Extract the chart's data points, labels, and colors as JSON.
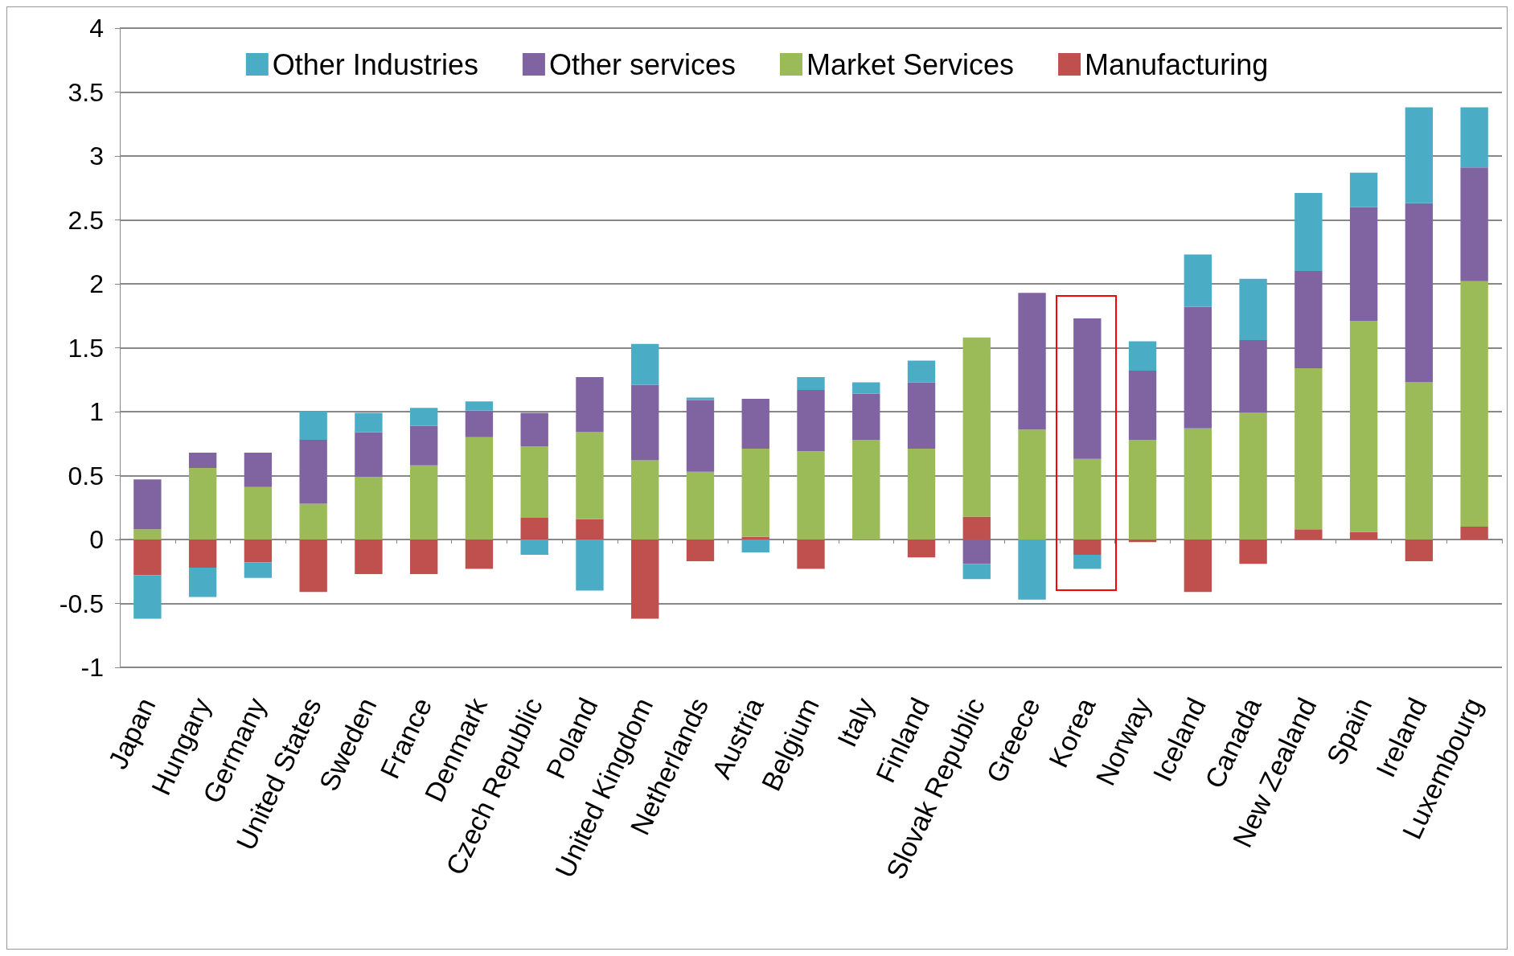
{
  "chart_data": {
    "type": "bar",
    "stacked": true,
    "categories": [
      "Japan",
      "Hungary",
      "Germany",
      "United States",
      "Sweden",
      "France",
      "Denmark",
      "Czech Republic",
      "Poland",
      "United Kingdom",
      "Netherlands",
      "Austria",
      "Belgium",
      "Italy",
      "Finland",
      "Slovak Republic",
      "Greece",
      "Korea",
      "Norway",
      "Iceland",
      "Canada",
      "New Zealand",
      "Spain",
      "Ireland",
      "Luxembourg"
    ],
    "series": [
      {
        "name": "Manufacturing",
        "color": "#c0504d",
        "values": [
          -0.28,
          -0.22,
          -0.18,
          -0.41,
          -0.27,
          -0.27,
          -0.23,
          0.17,
          0.16,
          -0.62,
          -0.17,
          0.02,
          -0.23,
          0,
          -0.14,
          0.18,
          0,
          -0.12,
          -0.02,
          -0.41,
          -0.19,
          0.08,
          0.06,
          -0.17,
          0.1
        ]
      },
      {
        "name": "Market Services",
        "color": "#9bbb59",
        "values": [
          0.08,
          0.56,
          0.41,
          0.28,
          0.49,
          0.58,
          0.8,
          0.56,
          0.68,
          0.62,
          0.53,
          0.69,
          0.69,
          0.78,
          0.71,
          1.4,
          0.86,
          0.63,
          0.78,
          0.87,
          0.99,
          1.26,
          1.65,
          1.23,
          1.92
        ]
      },
      {
        "name": "Other services",
        "color": "#8064a2",
        "values": [
          0.39,
          0.12,
          0.27,
          0.5,
          0.35,
          0.31,
          0.21,
          0.26,
          0.43,
          0.59,
          0.56,
          0.39,
          0.48,
          0.36,
          0.52,
          -0.19,
          1.07,
          1.1,
          0.54,
          0.95,
          0.57,
          0.76,
          0.89,
          1.4,
          0.89
        ]
      },
      {
        "name": "Other Industries",
        "color": "#4bacc6",
        "values": [
          -0.34,
          -0.23,
          -0.12,
          0.22,
          0.15,
          0.14,
          0.07,
          -0.12,
          -0.4,
          0.32,
          0.02,
          -0.1,
          0.1,
          0.09,
          0.17,
          -0.12,
          -0.47,
          -0.11,
          0.23,
          0.41,
          0.48,
          0.61,
          0.27,
          0.75,
          0.47
        ]
      }
    ],
    "ylim": [
      -1,
      4
    ],
    "yticks": [
      -1,
      -0.5,
      0,
      0.5,
      1,
      1.5,
      2,
      2.5,
      3,
      3.5,
      4
    ],
    "grid": "y",
    "legend": "top"
  }
}
